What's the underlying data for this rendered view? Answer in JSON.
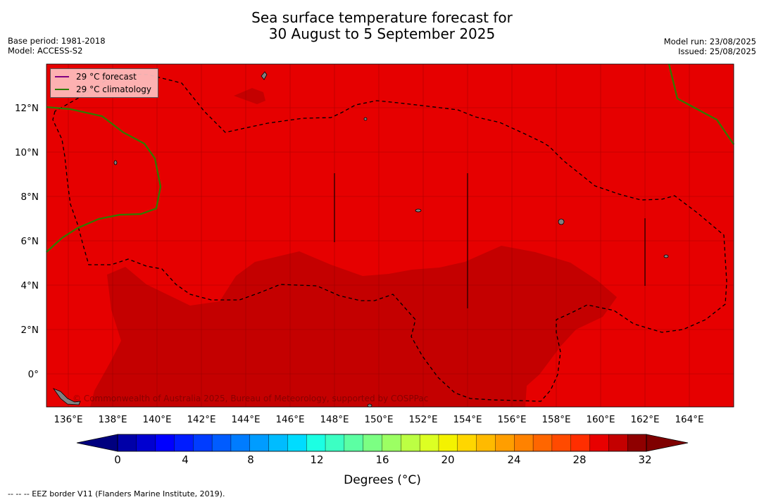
{
  "title": {
    "line1": "Sea surface temperature forecast for",
    "line2": "30 August to 5 September 2025"
  },
  "meta_left": {
    "base_period": "Base period: 1981-2018",
    "model": "Model: ACCESS-S2"
  },
  "meta_right": {
    "model_run": "Model run: 23/08/2025",
    "issued": "Issued: 25/08/2025"
  },
  "legend": {
    "forecast": "29 °C  forecast",
    "climatology": "29 °C  climatology",
    "forecast_color": "#800080",
    "climatology_color": "#2e7d00"
  },
  "map": {
    "lat_ticks": [
      "12°N",
      "10°N",
      "8°N",
      "6°N",
      "4°N",
      "2°N",
      "0°"
    ],
    "lon_ticks": [
      "136°E",
      "138°E",
      "140°E",
      "142°E",
      "144°E",
      "146°E",
      "148°E",
      "150°E",
      "152°E",
      "154°E",
      "156°E",
      "158°E",
      "160°E",
      "162°E",
      "164°E"
    ],
    "fill_colors": {
      "band_28_30": "#e60000",
      "band_30_32": "#c40000",
      "land": "#808080"
    },
    "copyright": "© Commonwealth of Australia 2025, Bureau of Meteorology, supported by COSPPac"
  },
  "colorbar": {
    "ticks": [
      "0",
      "4",
      "8",
      "12",
      "16",
      "20",
      "24",
      "28",
      "32"
    ],
    "label": "Degrees ($^\\circ$C)",
    "label_display": "Degrees (°C)",
    "colors": [
      "#00007f",
      "#0000a8",
      "#0000d0",
      "#0000ff",
      "#001cff",
      "#003cff",
      "#005cff",
      "#007cff",
      "#009cff",
      "#00bcff",
      "#00dcff",
      "#1cffe3",
      "#3cffc3",
      "#5cffa3",
      "#7cff83",
      "#9cff63",
      "#bcff43",
      "#dcff23",
      "#f4f200",
      "#ffd600",
      "#ffba00",
      "#ff9e00",
      "#ff8200",
      "#ff6600",
      "#ff4a00",
      "#ff2e00",
      "#e80000",
      "#c40000",
      "#8f0000"
    ]
  },
  "footnote": "--  --  -- EEZ border V11 (Flanders Marine Institute, 2019)."
}
